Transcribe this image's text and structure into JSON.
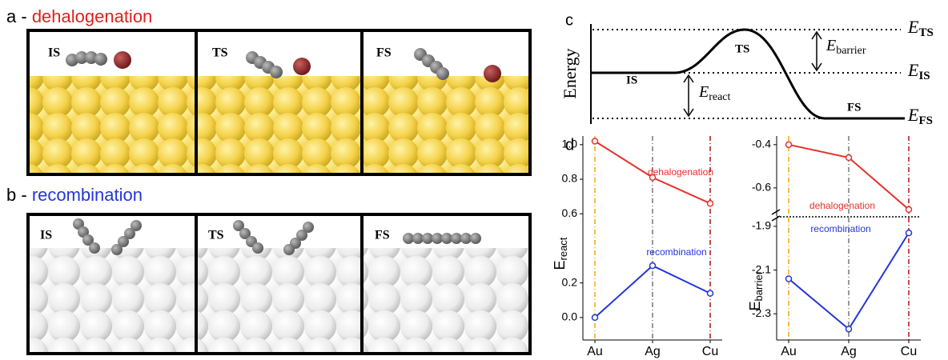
{
  "panel_a": {
    "letter": "a -",
    "title": "dehalogenation",
    "frames": [
      "IS",
      "TS",
      "FS"
    ]
  },
  "panel_b": {
    "letter": "b -",
    "title": "recombination",
    "frames": [
      "IS",
      "TS",
      "FS"
    ]
  },
  "panel_c": {
    "letter": "c",
    "y_label": "Energy",
    "stages": [
      "IS",
      "TS",
      "FS"
    ],
    "barrier": {
      "symbol": "E",
      "subscript": "barrier"
    },
    "react": {
      "symbol": "E",
      "subscript": "react"
    },
    "levels": [
      {
        "symbol": "E",
        "subscript": "TS"
      },
      {
        "symbol": "E",
        "subscript": "IS"
      },
      {
        "symbol": "E",
        "subscript": "FS"
      }
    ]
  },
  "panel_d": {
    "letter": "d"
  },
  "chart_data": [
    {
      "type": "line",
      "categories": [
        "Au",
        "Ag",
        "Cu"
      ],
      "category_colors": [
        "#f2a900",
        "#777777",
        "#b01010"
      ],
      "y_label": "E",
      "y_label_sub": "react",
      "ylim": [
        -0.13,
        1.05
      ],
      "yticks": [
        {
          "value": 0,
          "label": "0.0"
        },
        0.2,
        0.6,
        0.8,
        {
          "value": 1,
          "label": "1.0"
        }
      ],
      "series": [
        {
          "name": "dehalogenation",
          "color": "#e8302a",
          "values": [
            1.02,
            0.81,
            0.66
          ]
        },
        {
          "name": "recombination",
          "color": "#2436d8",
          "values": [
            0.0,
            0.3,
            0.14
          ]
        }
      ]
    },
    {
      "type": "line",
      "category_colors": [
        "#f2a900",
        "#777777",
        "#b01010"
      ],
      "ylim": [
        -0.73,
        -0.36
      ],
      "yticks": [
        -0.4,
        -0.6
      ],
      "series": [
        {
          "name": "dehalogenation",
          "color": "#e8302a",
          "values": [
            -0.4,
            -0.46,
            -0.7
          ]
        }
      ]
    },
    {
      "type": "line",
      "categories": [
        "Au",
        "Ag",
        "Cu"
      ],
      "category_colors": [
        "#f2a900",
        "#777777",
        "#b01010"
      ],
      "y_label": "E",
      "y_label_sub": "barrier",
      "ylim": [
        -2.42,
        -1.86
      ],
      "yticks": [
        -1.9,
        -2.1,
        -2.3
      ],
      "series": [
        {
          "name": "recombination",
          "color": "#2436d8",
          "values": [
            -2.14,
            -2.37,
            -1.93
          ]
        }
      ]
    }
  ]
}
